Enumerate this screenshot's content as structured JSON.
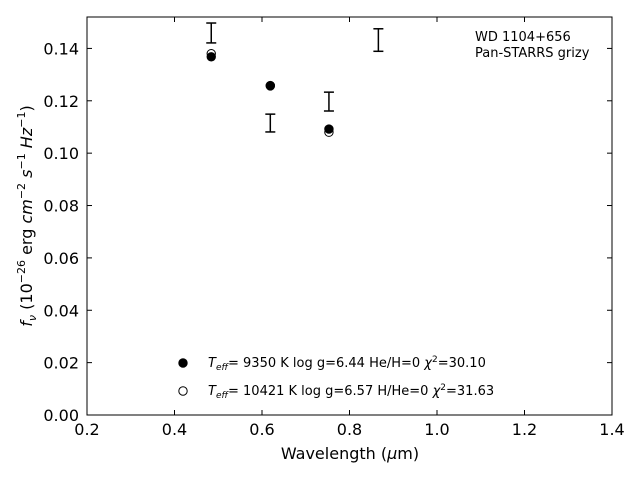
{
  "chart_data": {
    "type": "scatter",
    "title": "",
    "xlabel": "Wavelength (μm)",
    "ylabel": "f_ν (10^-26 erg cm^-2 s^-1 Hz^-1)",
    "xlim": [
      0.2,
      1.4
    ],
    "ylim": [
      0.0,
      0.152
    ],
    "xticks": [
      0.2,
      0.4,
      0.6,
      0.8,
      1.0,
      1.2,
      1.4
    ],
    "xtick_labels": [
      "0.2",
      "0.4",
      "0.6",
      "0.8",
      "1.0",
      "1.2",
      "1.4"
    ],
    "yticks": [
      0.0,
      0.02,
      0.04,
      0.06,
      0.08,
      0.1,
      0.12,
      0.14
    ],
    "ytick_labels": [
      "0.00",
      "0.02",
      "0.04",
      "0.06",
      "0.08",
      "0.10",
      "0.12",
      "0.14"
    ],
    "grid": false,
    "annotations": [
      "WD 1104+656",
      "Pan-STARRS grizy"
    ],
    "observed": {
      "x": [
        0.484,
        0.619,
        0.753,
        0.866
      ],
      "y": [
        0.1459,
        0.1115,
        0.1197,
        0.1432
      ],
      "yerr": [
        0.0038,
        0.0034,
        0.0036,
        0.0043
      ]
    },
    "series": [
      {
        "label": "T_eff=  9350 K  log g=6.44  He/H=0  χ²=30.10",
        "marker": "filled-circle",
        "x": [
          0.484,
          0.619,
          0.753
        ],
        "y": [
          0.1368,
          0.1258,
          0.1092
        ]
      },
      {
        "label": "T_eff= 10421 K  log g=6.57  H/He=0  χ²=31.63",
        "marker": "open-circle",
        "x": [
          0.484,
          0.619,
          0.753
        ],
        "y": [
          0.138,
          0.1257,
          0.108
        ]
      }
    ],
    "legend_position": "lower-center"
  }
}
